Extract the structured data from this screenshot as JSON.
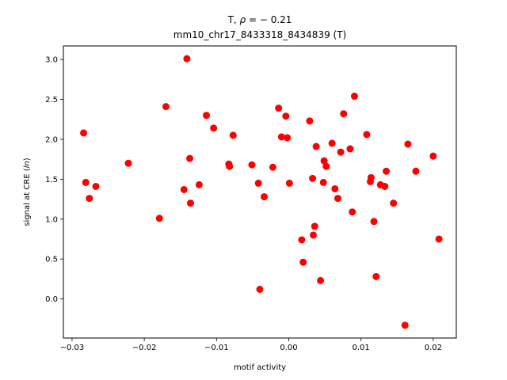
{
  "chart_data": {
    "type": "scatter",
    "title_line1_prefix": "T, ",
    "title_line1_rho": "ρ",
    "title_line1_suffix": " = − 0.21",
    "title_line2": "mm10_chr17_8433318_8434839 (T)",
    "xlabel": "motif activity",
    "ylabel_prefix": "signal at CRE (",
    "ylabel_italic": "ln",
    "ylabel_suffix": ")",
    "xlim": [
      -0.0312,
      0.0232
    ],
    "ylim": [
      -0.49,
      3.17
    ],
    "xticks": [
      {
        "value": -0.03,
        "label": "−0.03"
      },
      {
        "value": -0.02,
        "label": "−0.02"
      },
      {
        "value": -0.01,
        "label": "−0.01"
      },
      {
        "value": 0.0,
        "label": "0.00"
      },
      {
        "value": 0.01,
        "label": "0.01"
      },
      {
        "value": 0.02,
        "label": "0.02"
      }
    ],
    "yticks": [
      {
        "value": 0.0,
        "label": "0.0"
      },
      {
        "value": 0.5,
        "label": "0.5"
      },
      {
        "value": 1.0,
        "label": "1.0"
      },
      {
        "value": 1.5,
        "label": "1.5"
      },
      {
        "value": 2.0,
        "label": "2.0"
      },
      {
        "value": 2.5,
        "label": "2.5"
      },
      {
        "value": 3.0,
        "label": "3.0"
      }
    ],
    "grid": false,
    "marker_color": "#ff0000",
    "points": [
      {
        "x": -0.0284,
        "y": 2.08
      },
      {
        "x": -0.0281,
        "y": 1.46
      },
      {
        "x": -0.0276,
        "y": 1.26
      },
      {
        "x": -0.0267,
        "y": 1.41
      },
      {
        "x": -0.0222,
        "y": 1.7
      },
      {
        "x": -0.0179,
        "y": 1.01
      },
      {
        "x": -0.017,
        "y": 2.41
      },
      {
        "x": -0.0145,
        "y": 1.37
      },
      {
        "x": -0.0141,
        "y": 3.01
      },
      {
        "x": -0.0137,
        "y": 1.76
      },
      {
        "x": -0.0136,
        "y": 1.2
      },
      {
        "x": -0.0124,
        "y": 1.43
      },
      {
        "x": -0.0114,
        "y": 2.3
      },
      {
        "x": -0.0104,
        "y": 2.14
      },
      {
        "x": -0.0083,
        "y": 1.69
      },
      {
        "x": -0.0082,
        "y": 1.66
      },
      {
        "x": -0.0077,
        "y": 2.05
      },
      {
        "x": -0.0051,
        "y": 1.68
      },
      {
        "x": -0.0042,
        "y": 1.45
      },
      {
        "x": -0.004,
        "y": 0.12
      },
      {
        "x": -0.0034,
        "y": 1.28
      },
      {
        "x": -0.0022,
        "y": 1.65
      },
      {
        "x": -0.0014,
        "y": 2.39
      },
      {
        "x": -0.001,
        "y": 2.03
      },
      {
        "x": -0.0004,
        "y": 2.29
      },
      {
        "x": -0.0002,
        "y": 2.02
      },
      {
        "x": 0.0001,
        "y": 1.45
      },
      {
        "x": 0.0018,
        "y": 0.74
      },
      {
        "x": 0.002,
        "y": 0.46
      },
      {
        "x": 0.0029,
        "y": 2.23
      },
      {
        "x": 0.0033,
        "y": 1.51
      },
      {
        "x": 0.0034,
        "y": 0.8
      },
      {
        "x": 0.0036,
        "y": 0.91
      },
      {
        "x": 0.0038,
        "y": 1.91
      },
      {
        "x": 0.0044,
        "y": 0.23
      },
      {
        "x": 0.0048,
        "y": 1.46
      },
      {
        "x": 0.0049,
        "y": 1.73
      },
      {
        "x": 0.0052,
        "y": 1.66
      },
      {
        "x": 0.006,
        "y": 1.95
      },
      {
        "x": 0.0064,
        "y": 1.38
      },
      {
        "x": 0.0068,
        "y": 1.26
      },
      {
        "x": 0.0072,
        "y": 1.84
      },
      {
        "x": 0.0076,
        "y": 2.32
      },
      {
        "x": 0.0085,
        "y": 1.88
      },
      {
        "x": 0.0088,
        "y": 1.09
      },
      {
        "x": 0.0091,
        "y": 2.54
      },
      {
        "x": 0.0108,
        "y": 2.06
      },
      {
        "x": 0.0113,
        "y": 1.47
      },
      {
        "x": 0.0114,
        "y": 1.52
      },
      {
        "x": 0.0118,
        "y": 0.97
      },
      {
        "x": 0.0121,
        "y": 0.28
      },
      {
        "x": 0.0127,
        "y": 1.43
      },
      {
        "x": 0.0133,
        "y": 1.41
      },
      {
        "x": 0.0135,
        "y": 1.6
      },
      {
        "x": 0.0145,
        "y": 1.2
      },
      {
        "x": 0.0161,
        "y": -0.33
      },
      {
        "x": 0.0165,
        "y": 1.94
      },
      {
        "x": 0.0176,
        "y": 1.6
      },
      {
        "x": 0.02,
        "y": 1.79
      },
      {
        "x": 0.0208,
        "y": 0.75
      }
    ]
  }
}
